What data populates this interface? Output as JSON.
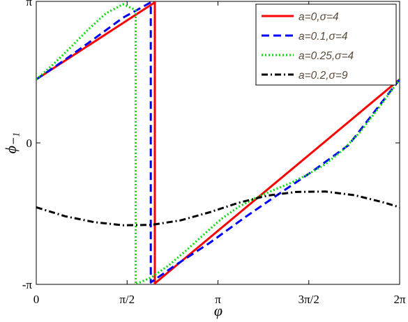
{
  "chart_data": {
    "type": "line",
    "title": "",
    "xlabel": "φ",
    "ylabel": "ϕ₋₁",
    "xlim": [
      0,
      6.2832
    ],
    "ylim": [
      -3.1416,
      3.1416
    ],
    "x_ticks": [
      {
        "value": 0,
        "label": "0"
      },
      {
        "value": 1.5708,
        "label": "π/2"
      },
      {
        "value": 3.1416,
        "label": "π"
      },
      {
        "value": 4.7124,
        "label": "3π/2"
      },
      {
        "value": 6.2832,
        "label": "2π"
      }
    ],
    "y_ticks": [
      {
        "value": -3.1416,
        "label": "-π"
      },
      {
        "value": 0,
        "label": "0"
      },
      {
        "value": 3.1416,
        "label": "π"
      }
    ],
    "grid": false,
    "legend_position": "top-right",
    "series": [
      {
        "name": "a=0,σ=4",
        "color": "#ff0000",
        "dash": "solid",
        "x": [
          0,
          2.05,
          2.05,
          6.2832
        ],
        "y": [
          1.41,
          3.12,
          -3.12,
          1.41
        ]
      },
      {
        "name": "a=0.1,σ=4",
        "color": "#0000ff",
        "dash": "dashed",
        "x": [
          0,
          0.5,
          1.0,
          1.5,
          1.98,
          1.98,
          2.4,
          3.0,
          3.6,
          4.2,
          4.8,
          5.4,
          6.2832
        ],
        "y": [
          1.41,
          1.85,
          2.31,
          2.78,
          3.12,
          -3.1,
          -2.72,
          -2.22,
          -1.66,
          -1.13,
          -0.61,
          -0.05,
          1.41
        ]
      },
      {
        "name": "a=0.25,σ=4",
        "color": "#00dd00",
        "dash": "dotted",
        "x": [
          0,
          0.3,
          0.6,
          0.9,
          1.2,
          1.5,
          1.72,
          1.72,
          2.0,
          2.3,
          2.6,
          2.9,
          3.2,
          3.5,
          3.8,
          4.1,
          4.4,
          4.7,
          5.0,
          5.3,
          5.6,
          5.9,
          6.2832
        ],
        "y": [
          1.41,
          1.75,
          2.13,
          2.52,
          2.87,
          3.08,
          2.95,
          -3.14,
          -2.98,
          -2.71,
          -2.38,
          -2.03,
          -1.69,
          -1.42,
          -1.22,
          -1.05,
          -0.89,
          -0.7,
          -0.47,
          -0.16,
          0.24,
          0.74,
          1.41
        ]
      },
      {
        "name": "a=0.2,σ=9",
        "color": "#000000",
        "dash": "dashdot",
        "x": [
          0,
          0.5,
          1.0,
          1.5,
          2.0,
          2.5,
          3.0,
          3.5,
          4.0,
          4.5,
          5.0,
          5.5,
          6.0,
          6.2832
        ],
        "y": [
          -1.43,
          -1.63,
          -1.76,
          -1.83,
          -1.82,
          -1.72,
          -1.54,
          -1.33,
          -1.17,
          -1.09,
          -1.08,
          -1.16,
          -1.32,
          -1.43
        ]
      }
    ]
  }
}
